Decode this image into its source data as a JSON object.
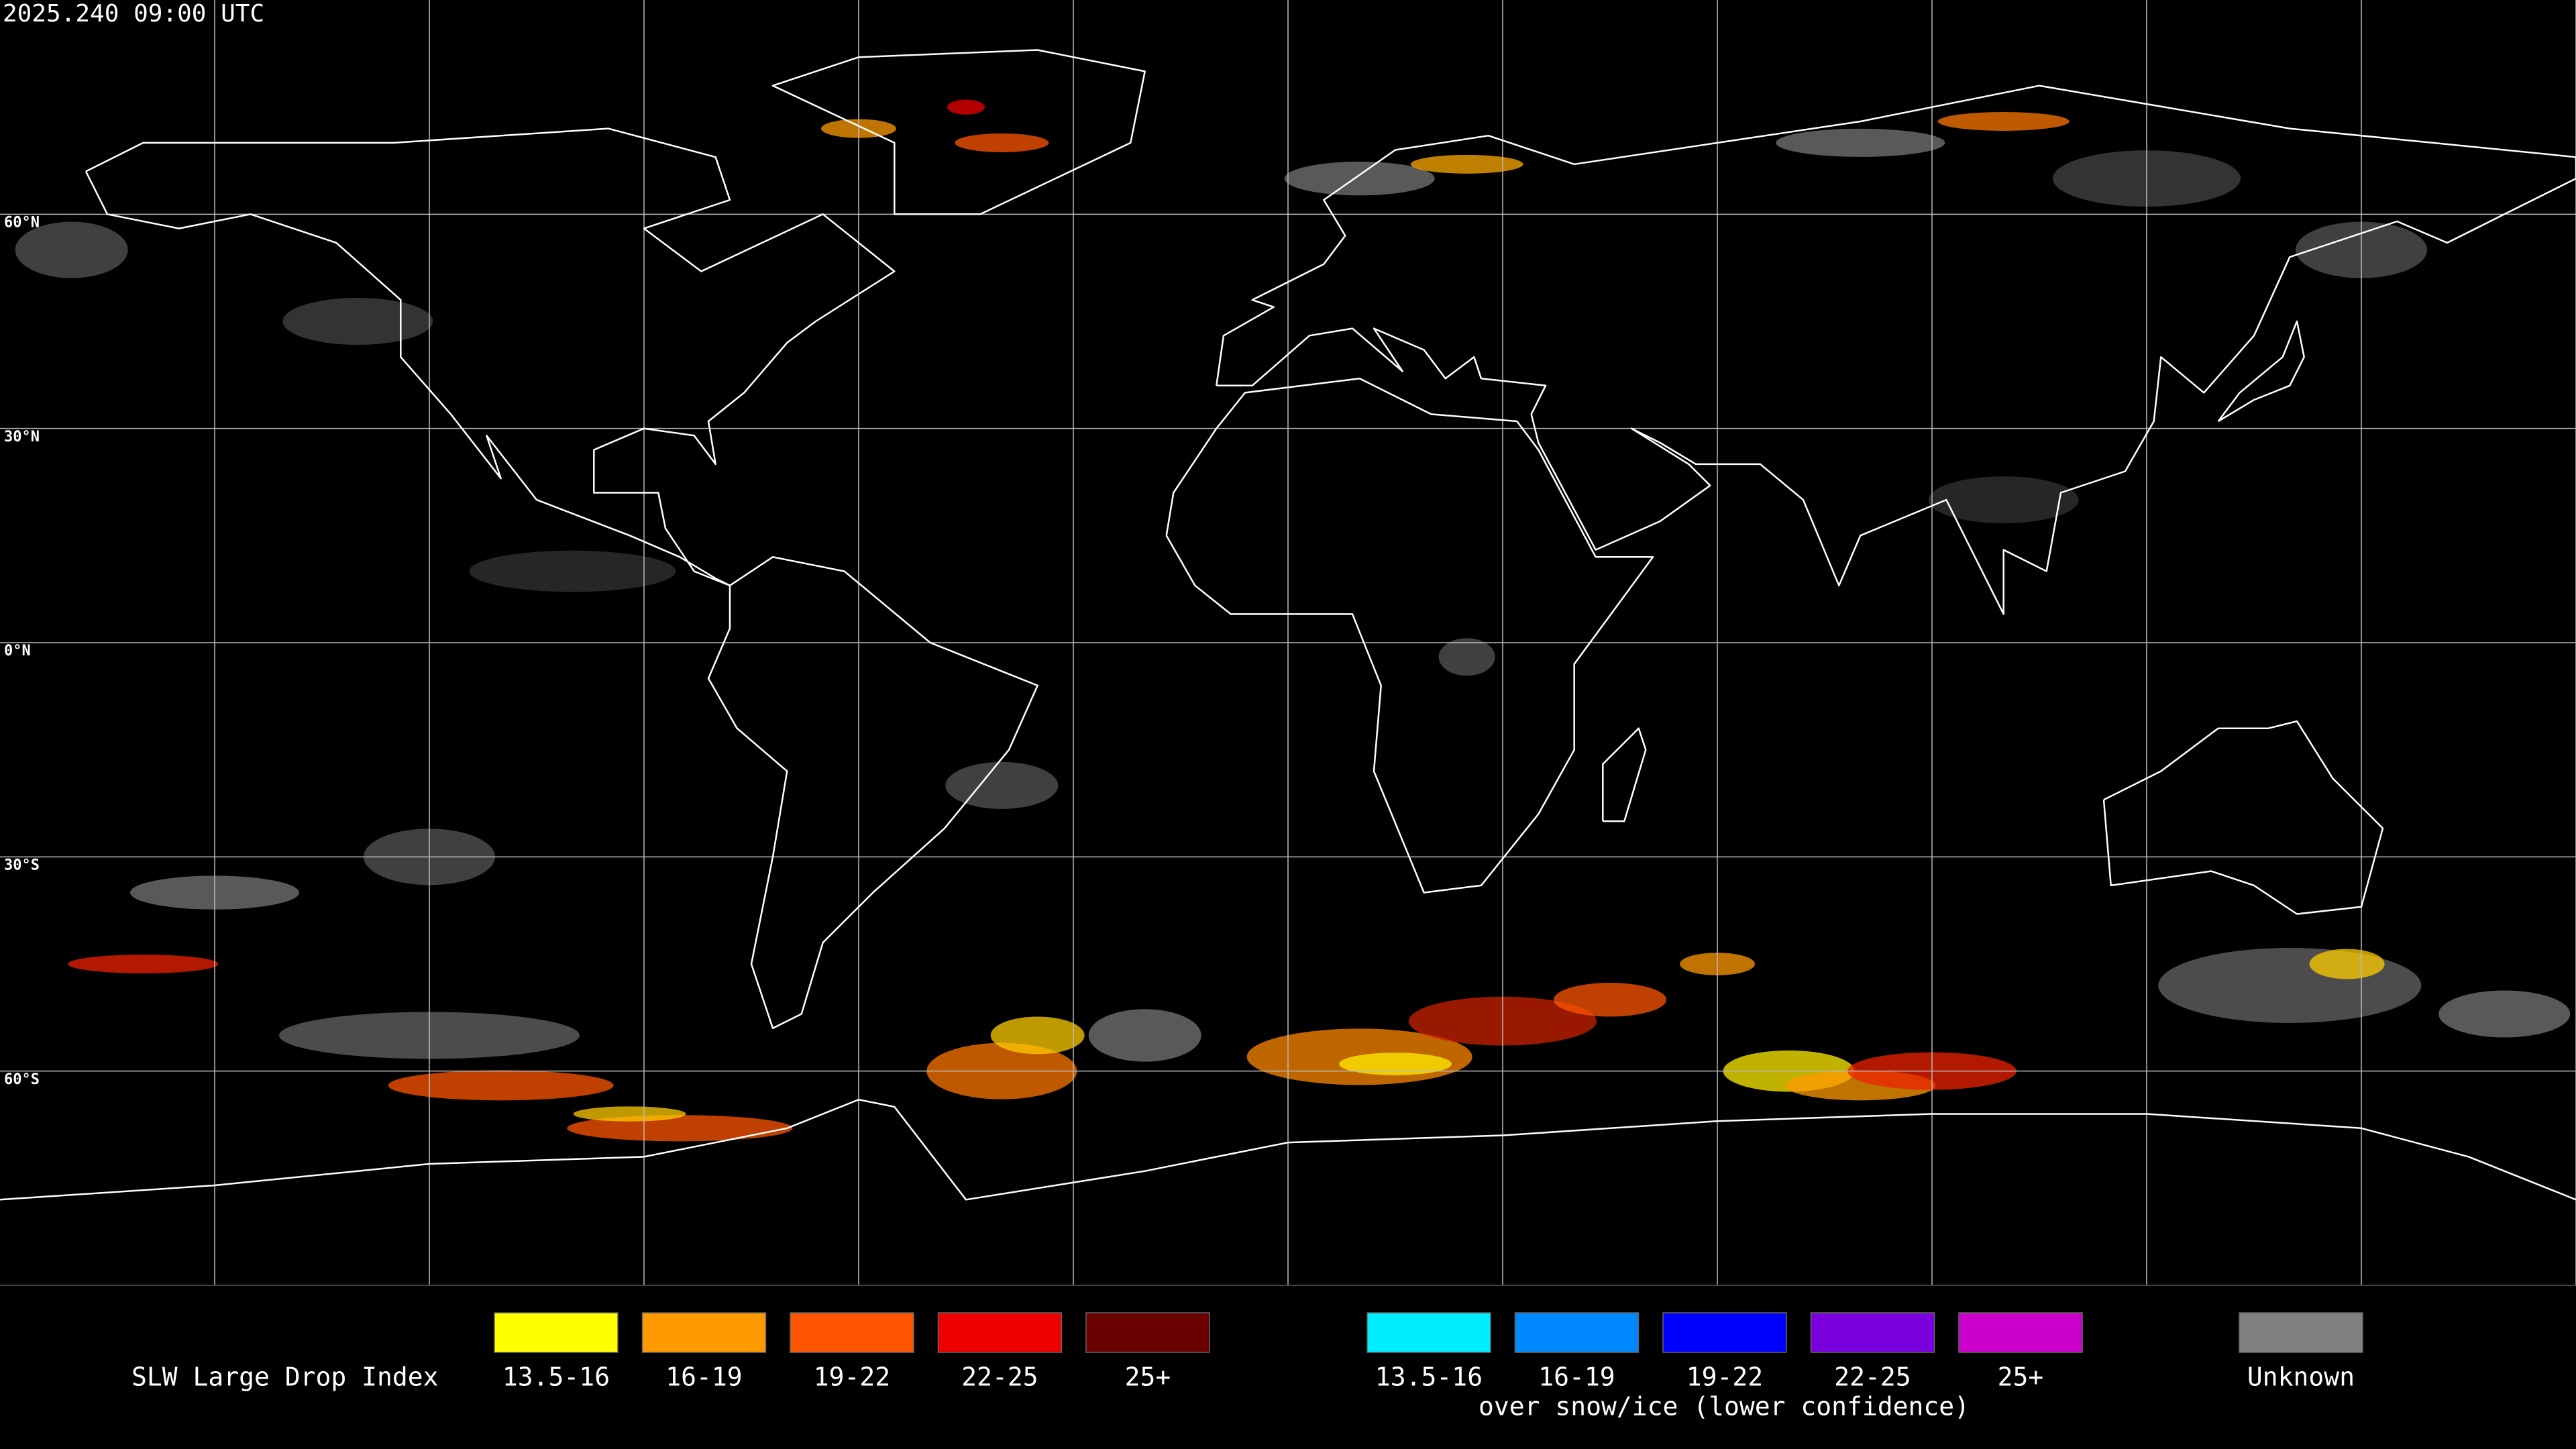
{
  "timestamp": "2025.240 09:00 UTC",
  "map": {
    "latitude_labels": [
      "60°N",
      "30°N",
      "0°N",
      "30°S",
      "60°S"
    ]
  },
  "legend": {
    "title": "SLW Large Drop Index",
    "items": [
      {
        "label": "13.5-16",
        "color": "#ffff00"
      },
      {
        "label": "16-19",
        "color": "#ff9a00"
      },
      {
        "label": "19-22",
        "color": "#ff5500"
      },
      {
        "label": "22-25",
        "color": "#ee0000"
      },
      {
        "label": "25+",
        "color": "#6a0000"
      }
    ],
    "snow_items": [
      {
        "label": "13.5-16",
        "color": "#00eeff"
      },
      {
        "label": "16-19",
        "color": "#0088ff"
      },
      {
        "label": "19-22",
        "color": "#0000ff"
      },
      {
        "label": "22-25",
        "color": "#7a00dd"
      },
      {
        "label": "25+",
        "color": "#cc00cc"
      }
    ],
    "snow_note": "over snow/ice (lower confidence)",
    "unknown": {
      "label": "Unknown",
      "color": "#808080"
    }
  }
}
